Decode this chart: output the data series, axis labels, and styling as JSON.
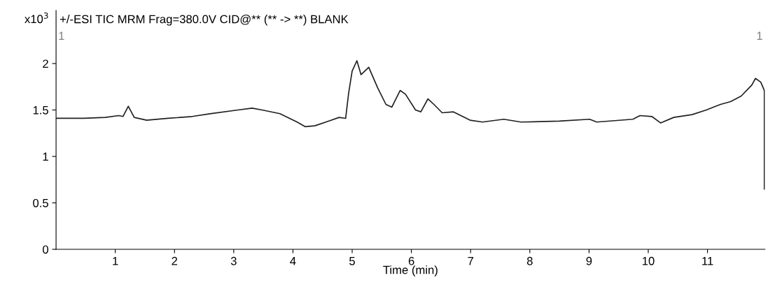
{
  "chart_data": {
    "type": "line",
    "title": "+/-ESI TIC MRM Frag=380.0V CID@** (** -> **) BLANK",
    "xlabel": "Time (min)",
    "ylabel": "x10$^{3}$",
    "annotations": [
      "1",
      "1"
    ],
    "xlim": [
      0,
      11.97
    ],
    "ylim": [
      0,
      2.57
    ],
    "xticks": [
      1,
      2,
      3,
      4,
      5,
      6,
      7,
      8,
      9,
      10,
      11
    ],
    "yticks": [
      0,
      0.5,
      1,
      1.5,
      2
    ],
    "grid": false,
    "legend": false,
    "marker": "none",
    "line_style": "solid",
    "series": [
      {
        "color": "#202020",
        "x": [
          0,
          0.47,
          0.83,
          1.06,
          1.13,
          1.22,
          1.32,
          1.53,
          1.89,
          2.3,
          2.6,
          3.07,
          3.31,
          3.48,
          3.78,
          4.07,
          4.21,
          4.37,
          4.6,
          4.78,
          4.89,
          4.94,
          5.0,
          5.08,
          5.15,
          5.28,
          5.43,
          5.57,
          5.67,
          5.81,
          5.9,
          6.07,
          6.16,
          6.28,
          6.38,
          6.52,
          6.71,
          6.99,
          7.2,
          7.56,
          7.85,
          8.5,
          9.01,
          9.13,
          9.74,
          9.86,
          10.06,
          10.21,
          10.43,
          10.74,
          10.98,
          11.22,
          11.39,
          11.57,
          11.75,
          11.81,
          11.9,
          11.96,
          11.96
        ],
        "values": [
          1.41,
          1.41,
          1.42,
          1.44,
          1.43,
          1.54,
          1.42,
          1.39,
          1.41,
          1.43,
          1.46,
          1.5,
          1.52,
          1.5,
          1.46,
          1.37,
          1.32,
          1.33,
          1.38,
          1.42,
          1.41,
          1.68,
          1.92,
          2.03,
          1.88,
          1.96,
          1.74,
          1.56,
          1.53,
          1.71,
          1.67,
          1.5,
          1.48,
          1.62,
          1.56,
          1.47,
          1.48,
          1.39,
          1.37,
          1.4,
          1.37,
          1.38,
          1.4,
          1.37,
          1.4,
          1.44,
          1.43,
          1.36,
          1.42,
          1.45,
          1.5,
          1.56,
          1.59,
          1.65,
          1.77,
          1.84,
          1.8,
          1.71,
          0.65
        ]
      }
    ]
  }
}
